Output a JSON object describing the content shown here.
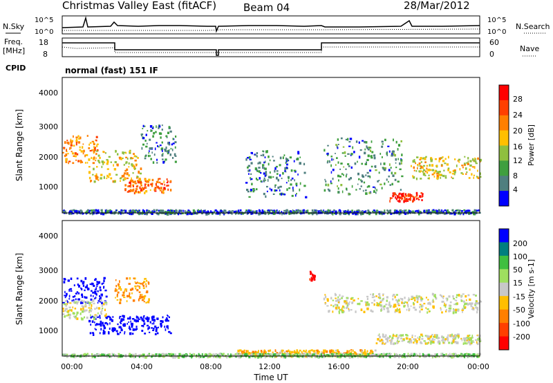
{
  "header": {
    "title": "Christmas Valley East (fitACF)",
    "beam": "Beam 04",
    "date": "28/Mar/2012"
  },
  "top_panel": {
    "left_label": "N.Sky",
    "left_ticks": [
      "10^5",
      "10^0"
    ],
    "right_ticks": [
      "10^5",
      "10^0"
    ],
    "right_label": "N.Search"
  },
  "freq_panel": {
    "left_label_line1": "Freq.",
    "left_label_line2": "[MHz]",
    "left_ticks": [
      "18",
      "8"
    ],
    "right_ticks": [
      "60",
      "0"
    ],
    "right_label": "Nave"
  },
  "cpid": {
    "label": "CPID",
    "value": "normal (fast) 151 IF"
  },
  "colors": {
    "power": [
      "#0000ff",
      "#4f7f7f",
      "#3f9f3f",
      "#8fbf3f",
      "#ffbf00",
      "#ff7f00",
      "#ff3f00",
      "#ff0000"
    ],
    "velocity": [
      "#0000ff",
      "#007f7f",
      "#3fbf3f",
      "#9fdf5f",
      "#c8c8c8",
      "#ffbf00",
      "#ff7f00",
      "#ff3f00",
      "#ff0000"
    ],
    "ground_scatter": "#bebebe"
  },
  "chart_data": [
    {
      "type": "heatmap",
      "ylabel": "Slant Range [km]",
      "ylim": [
        180,
        4500
      ],
      "xlim": [
        0,
        24
      ],
      "yticks": [
        "1000",
        "2000",
        "3000",
        "4000"
      ],
      "colorbar": {
        "label": "Power [dB]",
        "ticks": [
          "28",
          "24",
          "20",
          "16",
          "12",
          "8",
          "4"
        ]
      },
      "blobs": [
        {
          "t0": 0.0,
          "t1": 2.0,
          "r0": 1800,
          "r1": 2700,
          "v": 22
        },
        {
          "t0": 1.5,
          "t1": 4.5,
          "r0": 1200,
          "r1": 2200,
          "v": 18
        },
        {
          "t0": 3.5,
          "t1": 6.2,
          "r0": 850,
          "r1": 1300,
          "v": 24
        },
        {
          "t0": 4.5,
          "t1": 6.5,
          "r0": 1800,
          "r1": 3000,
          "v": 7
        },
        {
          "t0": 10.5,
          "t1": 14.0,
          "r0": 700,
          "r1": 2200,
          "v": 6
        },
        {
          "t0": 15.0,
          "t1": 19.5,
          "r0": 800,
          "r1": 2600,
          "v": 8
        },
        {
          "t0": 18.8,
          "t1": 20.7,
          "r0": 580,
          "r1": 850,
          "v": 28
        },
        {
          "t0": 20.0,
          "t1": 24.0,
          "r0": 1300,
          "r1": 2000,
          "v": 17
        },
        {
          "t0": 0.0,
          "t1": 24.0,
          "r0": 180,
          "r1": 300,
          "v": 5
        }
      ]
    },
    {
      "type": "heatmap",
      "xlabel": "Time UT",
      "ylabel": "Slant Range [km]",
      "ylim": [
        180,
        4500
      ],
      "xlim": [
        0,
        24
      ],
      "xticks": [
        "00:00",
        "04:00",
        "08:00",
        "12:00",
        "16:00",
        "20:00",
        "00:00"
      ],
      "yticks": [
        "1000",
        "2000",
        "3000",
        "4000"
      ],
      "colorbar": {
        "label": "Velocity [m s-1]",
        "ticks": [
          "200",
          "100",
          "50",
          "15",
          "-15",
          "-50",
          "-100",
          "-200"
        ]
      },
      "blobs": [
        {
          "t0": 0.0,
          "t1": 2.5,
          "r0": 1900,
          "r1": 2700,
          "v": 200
        },
        {
          "t0": 1.5,
          "t1": 6.2,
          "r0": 900,
          "r1": 1500,
          "v": 220
        },
        {
          "t0": 0.0,
          "t1": 2.5,
          "r0": 1400,
          "r1": 2000,
          "v": 0
        },
        {
          "t0": 3.0,
          "t1": 5.0,
          "r0": 1900,
          "r1": 2700,
          "v": -60
        },
        {
          "t0": 15.0,
          "t1": 24.0,
          "r0": 1600,
          "r1": 2200,
          "v": 0
        },
        {
          "t0": 18.0,
          "t1": 24.0,
          "r0": 600,
          "r1": 900,
          "v": 0
        },
        {
          "t0": 10.0,
          "t1": 18.0,
          "r0": 200,
          "r1": 400,
          "v": -40
        },
        {
          "t0": 0.0,
          "t1": 24.0,
          "r0": 180,
          "r1": 280,
          "v": 20
        },
        {
          "t0": 14.2,
          "t1": 14.5,
          "r0": 2600,
          "r1": 2900,
          "v": -220
        }
      ]
    }
  ]
}
